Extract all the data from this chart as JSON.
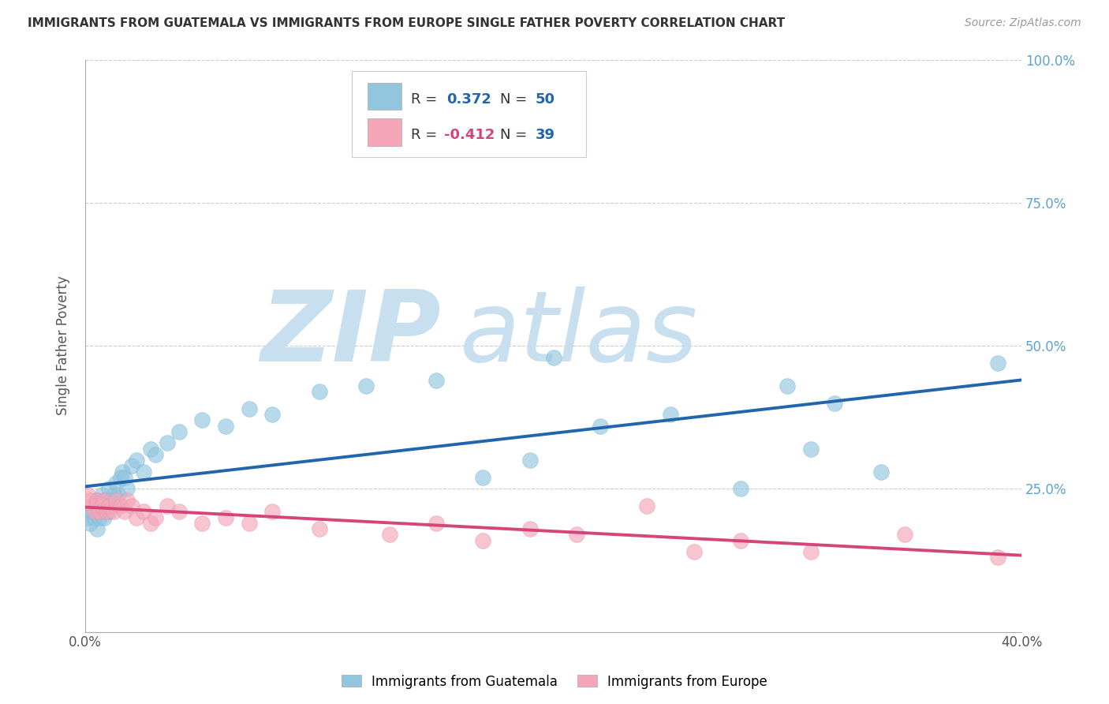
{
  "title": "IMMIGRANTS FROM GUATEMALA VS IMMIGRANTS FROM EUROPE SINGLE FATHER POVERTY CORRELATION CHART",
  "source": "Source: ZipAtlas.com",
  "ylabel": "Single Father Poverty",
  "xlabel_blue": "Immigrants from Guatemala",
  "xlabel_pink": "Immigrants from Europe",
  "xlim": [
    0,
    0.4
  ],
  "ylim": [
    0,
    1.0
  ],
  "legend_R_blue": "0.372",
  "legend_N_blue": "50",
  "legend_R_pink": "-0.412",
  "legend_N_pink": "39",
  "blue_color": "#92c5de",
  "pink_color": "#f4a6b8",
  "line_blue": "#2166ac",
  "line_pink": "#d6457a",
  "watermark_zip": "ZIP",
  "watermark_atlas": "atlas",
  "watermark_color_zip": "#c8dff0",
  "watermark_color_atlas": "#c8dff0",
  "background_color": "#ffffff",
  "title_fontsize": 11,
  "blue_x": [
    0.001,
    0.002,
    0.003,
    0.004,
    0.004,
    0.005,
    0.005,
    0.005,
    0.006,
    0.006,
    0.007,
    0.007,
    0.008,
    0.008,
    0.009,
    0.01,
    0.01,
    0.011,
    0.012,
    0.013,
    0.014,
    0.015,
    0.016,
    0.017,
    0.018,
    0.02,
    0.022,
    0.025,
    0.028,
    0.03,
    0.035,
    0.04,
    0.05,
    0.06,
    0.07,
    0.08,
    0.1,
    0.12,
    0.15,
    0.17,
    0.19,
    0.2,
    0.22,
    0.25,
    0.28,
    0.3,
    0.31,
    0.32,
    0.34,
    0.39
  ],
  "blue_y": [
    0.2,
    0.19,
    0.21,
    0.2,
    0.22,
    0.18,
    0.21,
    0.23,
    0.2,
    0.22,
    0.21,
    0.24,
    0.2,
    0.23,
    0.22,
    0.21,
    0.25,
    0.23,
    0.24,
    0.26,
    0.24,
    0.27,
    0.28,
    0.27,
    0.25,
    0.29,
    0.3,
    0.28,
    0.32,
    0.31,
    0.33,
    0.35,
    0.37,
    0.36,
    0.39,
    0.38,
    0.42,
    0.43,
    0.44,
    0.27,
    0.3,
    0.48,
    0.36,
    0.38,
    0.25,
    0.43,
    0.32,
    0.4,
    0.28,
    0.47
  ],
  "pink_x": [
    0.001,
    0.002,
    0.003,
    0.004,
    0.005,
    0.005,
    0.006,
    0.007,
    0.008,
    0.009,
    0.01,
    0.012,
    0.013,
    0.015,
    0.017,
    0.018,
    0.02,
    0.022,
    0.025,
    0.028,
    0.03,
    0.035,
    0.04,
    0.05,
    0.06,
    0.07,
    0.08,
    0.1,
    0.13,
    0.15,
    0.17,
    0.19,
    0.21,
    0.24,
    0.26,
    0.28,
    0.31,
    0.35,
    0.39
  ],
  "pink_y": [
    0.24,
    0.23,
    0.22,
    0.21,
    0.23,
    0.22,
    0.21,
    0.22,
    0.23,
    0.21,
    0.22,
    0.21,
    0.23,
    0.22,
    0.21,
    0.23,
    0.22,
    0.2,
    0.21,
    0.19,
    0.2,
    0.22,
    0.21,
    0.19,
    0.2,
    0.19,
    0.21,
    0.18,
    0.17,
    0.19,
    0.16,
    0.18,
    0.17,
    0.22,
    0.14,
    0.16,
    0.14,
    0.17,
    0.13
  ]
}
